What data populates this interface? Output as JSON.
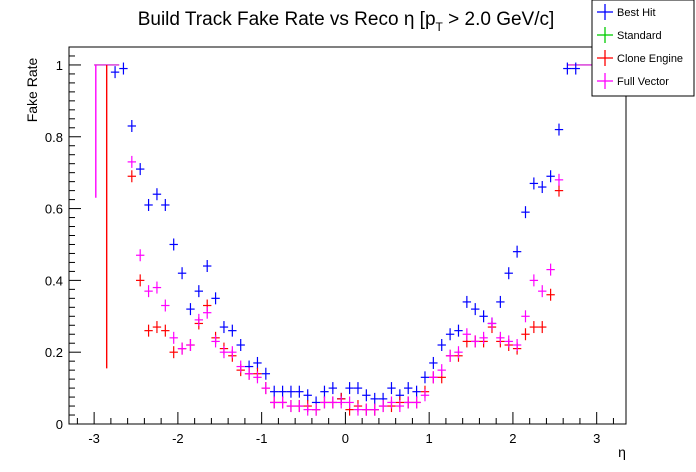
{
  "chart_data": {
    "type": "scatter",
    "title": "Build Track Fake Rate vs Reco η [p",
    "title_sub": "T",
    "title_tail": " > 2.0 GeV/c]",
    "xlabel": "η",
    "ylabel": "Fake Rate",
    "xlim": [
      -3.3,
      3.35
    ],
    "ylim": [
      0,
      1.05
    ],
    "x_ticks": [
      "-3",
      "-2",
      "-1",
      "0",
      "1",
      "2",
      "3"
    ],
    "y_ticks": [
      "0",
      "0.2",
      "0.4",
      "0.6",
      "0.8",
      "1"
    ],
    "legend_position": "top-right",
    "series": [
      {
        "name": "Best Hit",
        "color": "#0000ff",
        "points": [
          [
            -2.75,
            0.98
          ],
          [
            -2.65,
            0.99
          ],
          [
            -2.55,
            0.83
          ],
          [
            -2.45,
            0.71
          ],
          [
            -2.35,
            0.61
          ],
          [
            -2.25,
            0.64
          ],
          [
            -2.15,
            0.61
          ],
          [
            -2.05,
            0.5
          ],
          [
            -1.95,
            0.42
          ],
          [
            -1.85,
            0.32
          ],
          [
            -1.75,
            0.37
          ],
          [
            -1.65,
            0.44
          ],
          [
            -1.55,
            0.35
          ],
          [
            -1.45,
            0.27
          ],
          [
            -1.35,
            0.26
          ],
          [
            -1.25,
            0.22
          ],
          [
            -1.15,
            0.16
          ],
          [
            -1.05,
            0.17
          ],
          [
            -0.95,
            0.14
          ],
          [
            -0.85,
            0.09
          ],
          [
            -0.75,
            0.09
          ],
          [
            -0.65,
            0.09
          ],
          [
            -0.55,
            0.09
          ],
          [
            -0.45,
            0.08
          ],
          [
            -0.35,
            0.06
          ],
          [
            -0.25,
            0.09
          ],
          [
            -0.15,
            0.1
          ],
          [
            -0.05,
            0.07
          ],
          [
            0.05,
            0.1
          ],
          [
            0.15,
            0.1
          ],
          [
            0.25,
            0.08
          ],
          [
            0.35,
            0.07
          ],
          [
            0.45,
            0.07
          ],
          [
            0.55,
            0.1
          ],
          [
            0.65,
            0.08
          ],
          [
            0.75,
            0.1
          ],
          [
            0.85,
            0.09
          ],
          [
            0.95,
            0.13
          ],
          [
            1.05,
            0.17
          ],
          [
            1.15,
            0.22
          ],
          [
            1.25,
            0.25
          ],
          [
            1.35,
            0.26
          ],
          [
            1.45,
            0.34
          ],
          [
            1.55,
            0.32
          ],
          [
            1.65,
            0.3
          ],
          [
            1.75,
            0.28
          ],
          [
            1.85,
            0.34
          ],
          [
            1.95,
            0.42
          ],
          [
            2.05,
            0.48
          ],
          [
            2.15,
            0.59
          ],
          [
            2.25,
            0.67
          ],
          [
            2.35,
            0.66
          ],
          [
            2.45,
            0.69
          ],
          [
            2.55,
            0.82
          ],
          [
            2.65,
            0.99
          ],
          [
            2.75,
            0.99
          ]
        ]
      },
      {
        "name": "Standard",
        "color": "#00cc00",
        "points": []
      },
      {
        "name": "Clone Engine",
        "color": "#ff0000",
        "points": [
          [
            -2.55,
            0.69
          ],
          [
            -2.45,
            0.4
          ],
          [
            -2.35,
            0.26
          ],
          [
            -2.25,
            0.27
          ],
          [
            -2.15,
            0.26
          ],
          [
            -2.05,
            0.2
          ],
          [
            -1.95,
            0.21
          ],
          [
            -1.85,
            0.22
          ],
          [
            -1.75,
            0.28
          ],
          [
            -1.65,
            0.33
          ],
          [
            -1.55,
            0.24
          ],
          [
            -1.45,
            0.21
          ],
          [
            -1.35,
            0.19
          ],
          [
            -1.25,
            0.15
          ],
          [
            -1.15,
            0.14
          ],
          [
            -1.05,
            0.14
          ],
          [
            -0.95,
            0.1
          ],
          [
            -0.85,
            0.06
          ],
          [
            -0.75,
            0.06
          ],
          [
            -0.65,
            0.05
          ],
          [
            -0.55,
            0.05
          ],
          [
            -0.45,
            0.05
          ],
          [
            -0.35,
            0.04
          ],
          [
            -0.25,
            0.06
          ],
          [
            -0.15,
            0.06
          ],
          [
            -0.05,
            0.07
          ],
          [
            0.05,
            0.04
          ],
          [
            0.15,
            0.05
          ],
          [
            0.25,
            0.04
          ],
          [
            0.35,
            0.04
          ],
          [
            0.45,
            0.05
          ],
          [
            0.55,
            0.05
          ],
          [
            0.65,
            0.06
          ],
          [
            0.75,
            0.06
          ],
          [
            0.85,
            0.06
          ],
          [
            0.95,
            0.09
          ],
          [
            1.05,
            0.13
          ],
          [
            1.15,
            0.13
          ],
          [
            1.25,
            0.19
          ],
          [
            1.35,
            0.19
          ],
          [
            1.45,
            0.23
          ],
          [
            1.55,
            0.23
          ],
          [
            1.65,
            0.23
          ],
          [
            1.75,
            0.27
          ],
          [
            1.85,
            0.23
          ],
          [
            1.95,
            0.22
          ],
          [
            2.05,
            0.21
          ],
          [
            2.15,
            0.25
          ],
          [
            2.25,
            0.27
          ],
          [
            2.35,
            0.27
          ],
          [
            2.45,
            0.36
          ],
          [
            2.55,
            0.65
          ]
        ],
        "bars": [
          {
            "x": -2.85,
            "y": 1.0,
            "low": 0.155,
            "high": 1.0
          }
        ]
      },
      {
        "name": "Full Vector",
        "color": "#ff00ff",
        "points": [
          [
            -2.55,
            0.73
          ],
          [
            -2.45,
            0.47
          ],
          [
            -2.35,
            0.37
          ],
          [
            -2.25,
            0.38
          ],
          [
            -2.15,
            0.33
          ],
          [
            -2.05,
            0.24
          ],
          [
            -1.95,
            0.21
          ],
          [
            -1.85,
            0.22
          ],
          [
            -1.75,
            0.29
          ],
          [
            -1.65,
            0.31
          ],
          [
            -1.55,
            0.23
          ],
          [
            -1.45,
            0.2
          ],
          [
            -1.35,
            0.2
          ],
          [
            -1.25,
            0.16
          ],
          [
            -1.15,
            0.14
          ],
          [
            -1.05,
            0.13
          ],
          [
            -0.95,
            0.1
          ],
          [
            -0.85,
            0.06
          ],
          [
            -0.75,
            0.06
          ],
          [
            -0.65,
            0.05
          ],
          [
            -0.55,
            0.05
          ],
          [
            -0.45,
            0.04
          ],
          [
            -0.35,
            0.04
          ],
          [
            -0.25,
            0.06
          ],
          [
            -0.15,
            0.06
          ],
          [
            -0.05,
            0.06
          ],
          [
            0.05,
            0.06
          ],
          [
            0.15,
            0.04
          ],
          [
            0.25,
            0.04
          ],
          [
            0.35,
            0.04
          ],
          [
            0.45,
            0.05
          ],
          [
            0.55,
            0.06
          ],
          [
            0.65,
            0.05
          ],
          [
            0.75,
            0.06
          ],
          [
            0.85,
            0.06
          ],
          [
            0.95,
            0.08
          ],
          [
            1.05,
            0.13
          ],
          [
            1.15,
            0.15
          ],
          [
            1.25,
            0.19
          ],
          [
            1.35,
            0.2
          ],
          [
            1.45,
            0.25
          ],
          [
            1.55,
            0.23
          ],
          [
            1.65,
            0.24
          ],
          [
            1.75,
            0.28
          ],
          [
            1.85,
            0.24
          ],
          [
            1.95,
            0.23
          ],
          [
            2.05,
            0.22
          ],
          [
            2.15,
            0.3
          ],
          [
            2.25,
            0.4
          ],
          [
            2.35,
            0.37
          ],
          [
            2.45,
            0.43
          ],
          [
            2.55,
            0.68
          ]
        ],
        "bars": [
          {
            "x": -2.98,
            "y": 1.0,
            "low": 0.63,
            "high": 1.0
          }
        ]
      }
    ],
    "saturated_bins": [
      {
        "x": -2.85,
        "y": 1.0,
        "halfwidth": 0.15
      },
      {
        "x": 2.8,
        "y": 1.0,
        "halfwidth": 0.15
      }
    ]
  }
}
